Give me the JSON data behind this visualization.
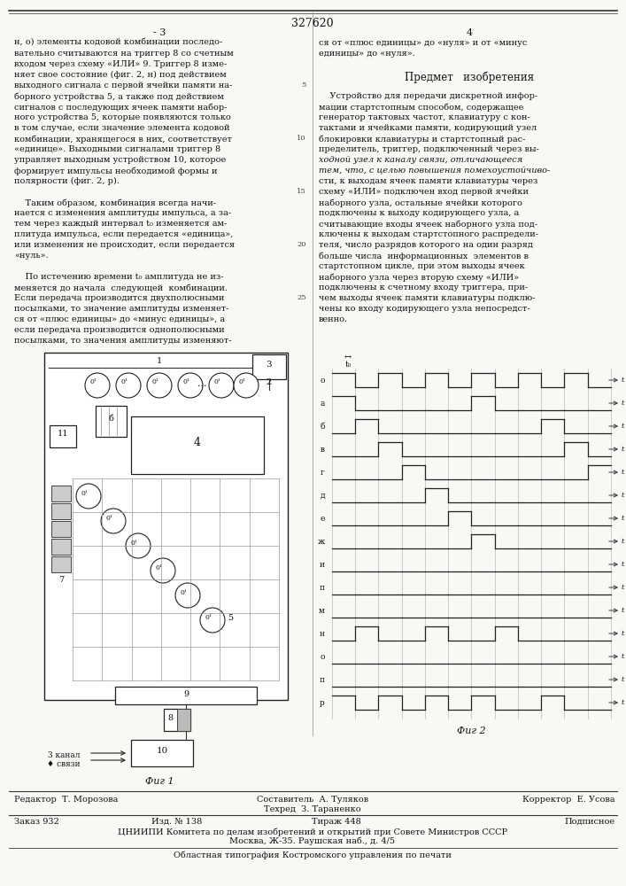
{
  "patent_number": "327620",
  "bg_color": "#f8f8f4",
  "text_color": "#111111",
  "col1_text": [
    "н, о) элементы кодовой комбинации последо-",
    "вательно считываются на триггер 8 со счетным",
    "входом через схему «ИЛИ» 9. Триггер 8 изме-",
    "няет свое состояние (фиг. 2, н) под действием",
    "выходного сигнала с первой ячейки памяти на-",
    "борного устройства 5, а также под действием",
    "сигналов с последующих ячеек памяти набор-",
    "ного устройства 5, которые появляются только",
    "в том случае, если значение элемента кодовой",
    "комбинации, хранящегося в них, соответствует",
    "«единице». Выходными сигналами триггер 8",
    "управляет выходным устройством 10, которое",
    "формирует импульсы необходимой формы и",
    "полярности (фиг. 2, р).",
    "",
    "    Таким образом, комбинация всегда начи-",
    "нается с изменения амплитуды импульса, а за-",
    "тем через каждый интервал t₀ изменяется ам-",
    "плитуда импульса, если передается «единица»,",
    "или изменения не происходит, если передается",
    "«нуль».",
    "",
    "    По истечению времени t₀ амплитуда не из-",
    "меняется до начала  следующей  комбинации.",
    "Если передача производится двухполюсными",
    "посылками, то значение амплитуды изменяет-",
    "ся от «плюс единицы» до «минус единицы», а",
    "если передача производится однополюсными",
    "посылками, то значения амплитуды изменяют-"
  ],
  "col2_text_top": [
    "ся от «плюс единицы» до «нуля» и от «минус",
    "единицы» до «нуля»."
  ],
  "col2_subject_title": "Предмет   изобретения",
  "col2_body": [
    "    Устройство для передачи дискретной инфор-",
    "мации стартстопным способом, содержащее",
    "генератор тактовых частот, клавиатуру с кон-",
    "тактами и ячейками памяти, кодирующий узел",
    "блокировки клавиатуры и стартстопный рас-",
    "пределитель, триггер, подключенный через вы-",
    "ходной узел к каналу связи, отличающееся",
    "тем, что, с целью повышения помехоустойчиво-",
    "сти, к выходам ячеек памяти клавиатуры через",
    "схему «ИЛИ» подключен вход первой ячейки",
    "наборного узла, остальные ячейки которого",
    "подключены к выходу кодирующего узла, а",
    "считывающие входы ячеек наборного узла под-",
    "ключены к выходам стартстопного распредели-",
    "теля, число разрядов которого на один разряд",
    "больше числа  информационных  элементов в",
    "стартстопном цикле, при этом выходы ячеек",
    "наборного узла через вторую схему «ИЛИ»",
    "подключены к счетному входу триггера, при-",
    "чем выходы ячеек памяти клавиатуры подклю-",
    "чены ко входу кодирующего узла непосредст-",
    "венно."
  ],
  "italic_lines": [
    6,
    7
  ],
  "line_numbers_left": [
    5,
    10,
    15,
    20,
    25
  ],
  "line_numbers_values": [
    "5",
    "10",
    "15",
    "20",
    "25"
  ],
  "footer_editor": "Редактор  Т. Морозова",
  "footer_author": "Составитель  А. Туляков",
  "footer_corrector": "Корректор  Е. Усова",
  "footer_techred": "Техред  З. Тараненко",
  "footer_order": "Заказ 932",
  "footer_izd": "Изд. № 138",
  "footer_tirazh": "Тираж 448",
  "footer_podpisnoe": "Подписное",
  "footer_tsniipi": "ЦНИИПИ Комитета по делам изобретений и открытий при Совете Министров СССР",
  "footer_moscow": "Москва, Ж-35. Раушская наб., д. 4/5",
  "footer_print": "Областная типография Костромского управления по печати",
  "fig1_label": "Фиг 1",
  "fig2_label": "Фиг 2",
  "fig2_signals": [
    "о",
    "а",
    "б",
    "в",
    "г",
    "д",
    "е",
    "ж",
    "и",
    "п",
    "м",
    "н",
    "о",
    "п",
    "р"
  ],
  "fig2_t0_label": "t₀"
}
